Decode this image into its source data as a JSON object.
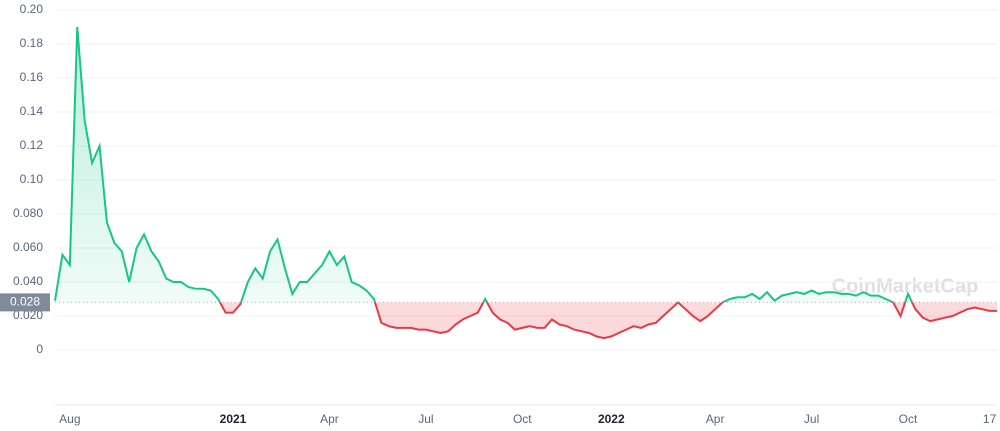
{
  "chart_data": {
    "type": "line",
    "watermark": "CoinMarketCap",
    "categories": [
      null,
      null,
      "Aug",
      null,
      null,
      null,
      null,
      null,
      null,
      null,
      null,
      null,
      null,
      null,
      null,
      null,
      null,
      null,
      null,
      null,
      null,
      null,
      null,
      null,
      "2021",
      null,
      null,
      null,
      null,
      null,
      null,
      null,
      null,
      null,
      null,
      null,
      null,
      "Apr",
      null,
      null,
      null,
      null,
      null,
      null,
      null,
      null,
      null,
      null,
      null,
      null,
      "Jul",
      null,
      null,
      null,
      null,
      null,
      null,
      null,
      null,
      null,
      null,
      null,
      null,
      "Oct",
      null,
      null,
      null,
      null,
      null,
      null,
      null,
      null,
      null,
      null,
      null,
      "2022",
      null,
      null,
      null,
      null,
      null,
      null,
      null,
      null,
      null,
      null,
      null,
      null,
      null,
      "Apr",
      null,
      null,
      null,
      null,
      null,
      null,
      null,
      null,
      null,
      null,
      null,
      null,
      "Jul",
      null,
      null,
      null,
      null,
      null,
      null,
      null,
      null,
      null,
      null,
      null,
      null,
      "Oct",
      null,
      null,
      null,
      null,
      null,
      null,
      null,
      null,
      null,
      null,
      "17",
      null
    ],
    "values": [
      0.029,
      0.056,
      0.05,
      0.19,
      0.135,
      0.11,
      0.12,
      0.075,
      0.063,
      0.058,
      0.04,
      0.06,
      0.068,
      0.058,
      0.052,
      0.042,
      0.04,
      0.04,
      0.037,
      0.036,
      0.036,
      0.035,
      0.03,
      0.022,
      0.022,
      0.027,
      0.04,
      0.048,
      0.042,
      0.058,
      0.065,
      0.048,
      0.033,
      0.04,
      0.04,
      0.045,
      0.05,
      0.058,
      0.05,
      0.055,
      0.04,
      0.038,
      0.035,
      0.03,
      0.016,
      0.014,
      0.013,
      0.013,
      0.013,
      0.012,
      0.012,
      0.011,
      0.01,
      0.011,
      0.015,
      0.018,
      0.02,
      0.022,
      0.03,
      0.022,
      0.018,
      0.016,
      0.012,
      0.013,
      0.014,
      0.013,
      0.013,
      0.018,
      0.015,
      0.014,
      0.012,
      0.011,
      0.01,
      0.008,
      0.007,
      0.008,
      0.01,
      0.012,
      0.014,
      0.013,
      0.015,
      0.016,
      0.02,
      0.024,
      0.028,
      0.024,
      0.02,
      0.017,
      0.02,
      0.024,
      0.028,
      0.03,
      0.031,
      0.031,
      0.033,
      0.03,
      0.034,
      0.029,
      0.032,
      0.033,
      0.034,
      0.033,
      0.035,
      0.033,
      0.034,
      0.034,
      0.033,
      0.033,
      0.032,
      0.034,
      0.032,
      0.032,
      0.03,
      0.028,
      0.02,
      0.033,
      0.024,
      0.019,
      0.017,
      0.018,
      0.019,
      0.02,
      0.022,
      0.024,
      0.025,
      0.024,
      0.023,
      0.023
    ],
    "baseline": 0.028,
    "up_color": "#16c784",
    "down_color": "#ea3943",
    "ylim": [
      0,
      0.2
    ],
    "yticks": [
      0,
      {
        "value": 0.02,
        "label": "0.020"
      },
      {
        "value": 0.04,
        "label": "0.040"
      },
      {
        "value": 0.06,
        "label": "0.060"
      },
      {
        "value": 0.08,
        "label": "0.080"
      },
      {
        "value": 0.1,
        "label": "0.10"
      },
      0.12,
      0.14,
      0.16,
      0.18,
      {
        "value": 0.2,
        "label": "0.20"
      }
    ],
    "grid": true
  }
}
